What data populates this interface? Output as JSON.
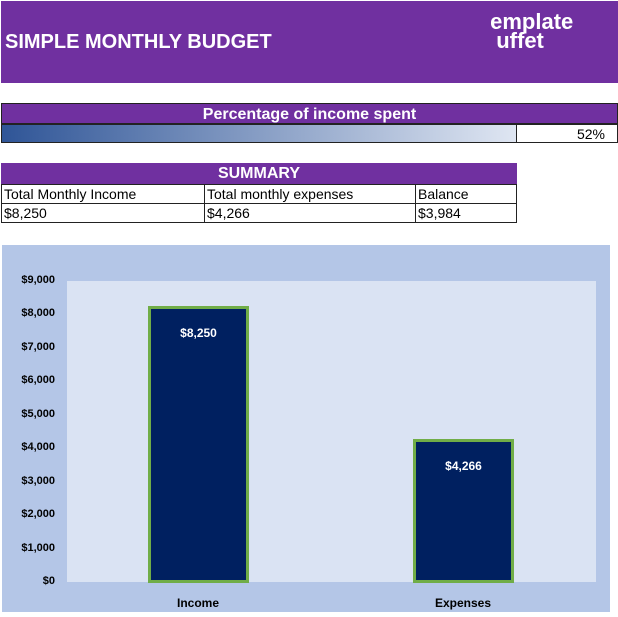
{
  "header": {
    "title": "SIMPLE MONTHLY BUDGET",
    "logo_text": "template buffet",
    "color": "#7030a0"
  },
  "percentage": {
    "label": "Percentage of income spent",
    "value": "52%",
    "fill_fraction": 0.52
  },
  "summary": {
    "title": "SUMMARY",
    "headers": [
      "Total   Monthly   Income",
      "Total monthly expenses",
      "Balance"
    ],
    "values": [
      "$8,250",
      "$4,266",
      "$3,984"
    ]
  },
  "chart_data": {
    "type": "bar",
    "categories": [
      "Income",
      "Expenses"
    ],
    "values": [
      8250,
      4266
    ],
    "data_labels": [
      "$8,250",
      "$4,266"
    ],
    "ylim": [
      0,
      9000
    ],
    "yticks": [
      "$0",
      "$1,000",
      "$2,000",
      "$3,000",
      "$4,000",
      "$5,000",
      "$6,000",
      "$7,000",
      "$8,000",
      "$9,000"
    ],
    "bar_color": "#002060",
    "bar_border": "#70ad47",
    "grid": false
  }
}
